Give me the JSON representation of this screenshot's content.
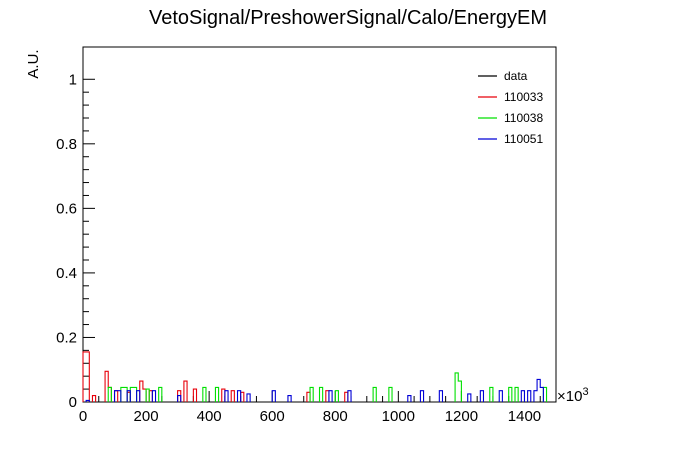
{
  "chart_data": {
    "type": "histogram",
    "title": "VetoSignal/PreshowerSignal/Calo/EnergyEM",
    "xlabel": "",
    "ylabel": "A.U.",
    "x_multiplier_label": "×10",
    "x_multiplier_exp": "3",
    "xlim": [
      0,
      1500
    ],
    "ylim": [
      0,
      1.1
    ],
    "bin_width": 10,
    "x_ticks": [
      0,
      200,
      400,
      600,
      800,
      1000,
      1200,
      1400
    ],
    "x_tick_labels": [
      "0",
      "200",
      "400",
      "600",
      "800",
      "1000",
      "1200",
      "1400"
    ],
    "y_ticks": [
      0,
      0.2,
      0.4,
      0.6,
      0.8,
      1
    ],
    "y_tick_labels": [
      "0",
      "0.2",
      "0.4",
      "0.6",
      "0.8",
      "1"
    ],
    "legend_position": "top-right",
    "series": [
      {
        "name": "data",
        "color": "#000000",
        "bins": []
      },
      {
        "name": "110033",
        "color": "#e8000b",
        "bins": [
          [
            0,
            0.155
          ],
          [
            10,
            0.155
          ],
          [
            30,
            0.02
          ],
          [
            70,
            0.095
          ],
          [
            80,
            0.045
          ],
          [
            100,
            0.035
          ],
          [
            140,
            0.03
          ],
          [
            180,
            0.065
          ],
          [
            190,
            0.04
          ],
          [
            210,
            0.035
          ],
          [
            300,
            0.035
          ],
          [
            320,
            0.065
          ],
          [
            350,
            0.04
          ],
          [
            440,
            0.04
          ],
          [
            470,
            0.035
          ],
          [
            500,
            0.03
          ],
          [
            710,
            0.03
          ],
          [
            770,
            0.035
          ],
          [
            830,
            0.03
          ]
        ]
      },
      {
        "name": "110038",
        "color": "#00e000",
        "bins": [
          [
            80,
            0.045
          ],
          [
            120,
            0.045
          ],
          [
            130,
            0.045
          ],
          [
            150,
            0.045
          ],
          [
            160,
            0.045
          ],
          [
            200,
            0.04
          ],
          [
            240,
            0.045
          ],
          [
            380,
            0.045
          ],
          [
            420,
            0.045
          ],
          [
            720,
            0.045
          ],
          [
            750,
            0.045
          ],
          [
            800,
            0.035
          ],
          [
            920,
            0.045
          ],
          [
            970,
            0.045
          ],
          [
            1180,
            0.09
          ],
          [
            1190,
            0.065
          ],
          [
            1290,
            0.045
          ],
          [
            1350,
            0.045
          ],
          [
            1370,
            0.045
          ],
          [
            1460,
            0.045
          ]
        ]
      },
      {
        "name": "110051",
        "color": "#0000d6",
        "bins": [
          [
            10,
            0.005
          ],
          [
            100,
            0.035
          ],
          [
            110,
            0.035
          ],
          [
            140,
            0.035
          ],
          [
            170,
            0.035
          ],
          [
            220,
            0.035
          ],
          [
            300,
            0.02
          ],
          [
            450,
            0.035
          ],
          [
            490,
            0.035
          ],
          [
            520,
            0.025
          ],
          [
            600,
            0.035
          ],
          [
            650,
            0.02
          ],
          [
            780,
            0.035
          ],
          [
            840,
            0.035
          ],
          [
            1030,
            0.02
          ],
          [
            1070,
            0.035
          ],
          [
            1130,
            0.035
          ],
          [
            1220,
            0.025
          ],
          [
            1260,
            0.035
          ],
          [
            1320,
            0.035
          ],
          [
            1390,
            0.035
          ],
          [
            1410,
            0.035
          ],
          [
            1430,
            0.035
          ],
          [
            1440,
            0.07
          ],
          [
            1450,
            0.045
          ]
        ]
      }
    ]
  }
}
